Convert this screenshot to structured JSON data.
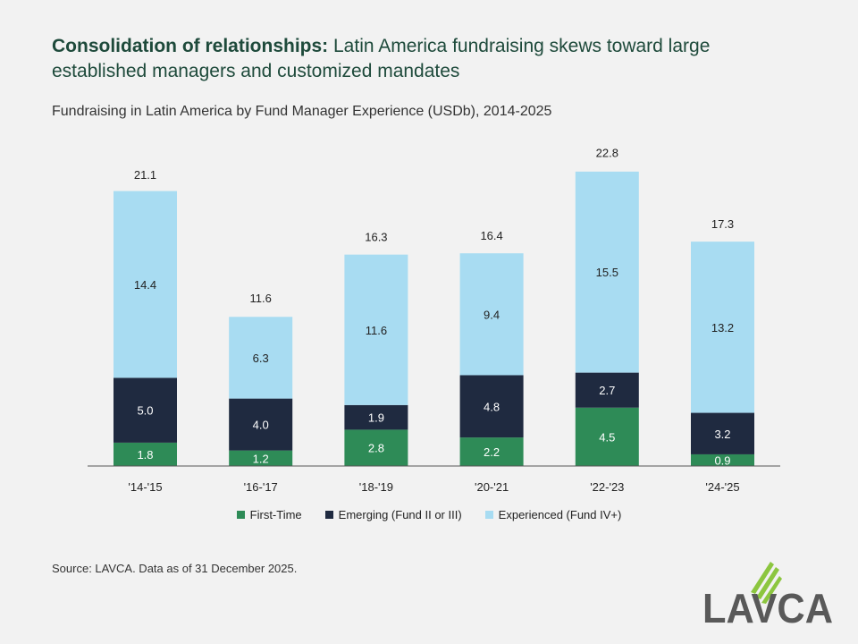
{
  "title": {
    "bold": "Consolidation of relationships:",
    "rest": " Latin America fundraising skews toward large established managers and customized mandates"
  },
  "subtitle": "Fundraising in Latin America by Fund Manager Experience (USDb), 2014-2025",
  "source": "Source: LAVCA. Data as of 31 December 2025.",
  "logo_text": "LAVCA",
  "colors": {
    "first_time": "#2e8b57",
    "emerging": "#1f2a40",
    "experienced": "#a8dcf2"
  },
  "chart_data": {
    "type": "bar",
    "stacked": true,
    "categories": [
      "'14-'15",
      "'16-'17",
      "'18-'19",
      "'20-'21",
      "'22-'23",
      "'24-'25"
    ],
    "series": [
      {
        "name": "First-Time",
        "values": [
          1.8,
          1.2,
          2.8,
          2.2,
          4.5,
          0.9
        ]
      },
      {
        "name": "Emerging (Fund II or III)",
        "values": [
          5.0,
          4.0,
          1.9,
          4.8,
          2.7,
          3.2
        ]
      },
      {
        "name": "Experienced (Fund IV+)",
        "values": [
          14.4,
          6.3,
          11.6,
          9.4,
          15.5,
          13.2
        ]
      }
    ],
    "totals": [
      21.1,
      11.6,
      16.3,
      16.4,
      22.8,
      17.3
    ],
    "title": "Fundraising in Latin America by Fund Manager Experience (USDb), 2014-2025",
    "xlabel": "",
    "ylabel": "USDb",
    "ylim": [
      0,
      23
    ],
    "legend_position": "bottom"
  }
}
